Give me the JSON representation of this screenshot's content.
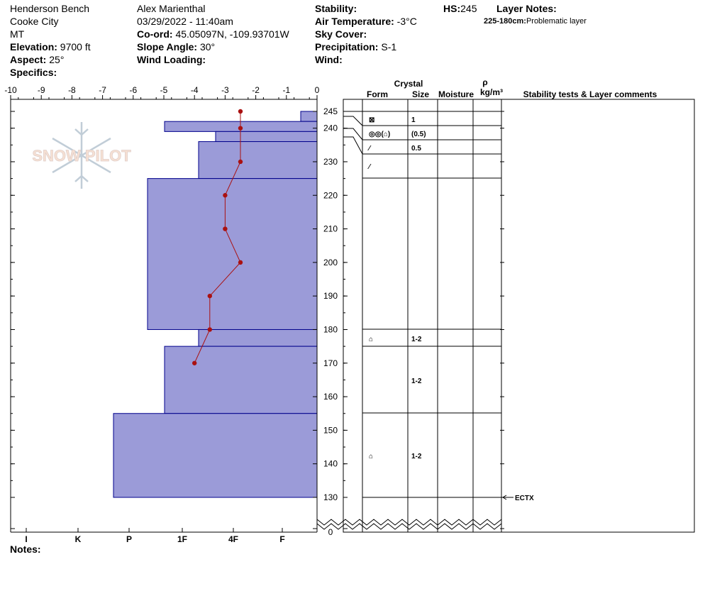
{
  "header": {
    "location": "Henderson Bench",
    "area": "Cooke City",
    "state": "MT",
    "elevation_label": "Elevation:",
    "elevation": "9700 ft",
    "aspect_label": "Aspect:",
    "aspect": "25°",
    "specifics_label": "Specifics:",
    "observer": "Alex Marienthal",
    "datetime": "03/29/2022 - 11:40am",
    "coord_label": "Co-ord:",
    "coord": "45.05097N, -109.93701W",
    "slope_label": "Slope Angle:",
    "slope": "30°",
    "wind_loading_label": "Wind Loading:",
    "stability_label": "Stability:",
    "air_temp_label": "Air Temperature:",
    "air_temp": "-3°C",
    "sky_label": "Sky Cover:",
    "precip_label": "Precipitation:",
    "precip": "S-1",
    "wind_label": "Wind:",
    "hs_label": "HS:",
    "hs": "245",
    "layer_notes_label": "Layer Notes:",
    "layer_note_range": "225-180cm:",
    "layer_note_text": "Problematic layer"
  },
  "columns": {
    "crystal": "Crystal",
    "form": "Form",
    "size": "Size",
    "moisture": "Moisture",
    "rho": "ρ",
    "density_unit": "kg/m³",
    "stability_comments": "Stability tests & Layer comments"
  },
  "notes_label": "Notes:",
  "watermark": "SNOW PILOT",
  "colors": {
    "hardness_fill": "#9b9bd8",
    "hardness_stroke": "#00008b",
    "temp": "#aa1111"
  },
  "chart_data": {
    "type": "snow-profile",
    "temp_axis": {
      "min": -10,
      "max": 0,
      "ticks": [
        "-10",
        "-9",
        "-8",
        "-7",
        "-6",
        "-5",
        "-4",
        "-3",
        "-2",
        "-1",
        "0"
      ]
    },
    "height_axis": {
      "min": 0,
      "max": 245,
      "ticks": [
        245,
        240,
        230,
        220,
        210,
        200,
        190,
        180,
        170,
        160,
        150,
        140,
        130,
        0
      ]
    },
    "hardness_labels": [
      "I",
      "K",
      "P",
      "1F",
      "4F",
      "F"
    ],
    "hardness_layers": [
      {
        "top": 245,
        "bottom": 242,
        "hardness": "F"
      },
      {
        "top": 242,
        "bottom": 239,
        "hardness": "1F+"
      },
      {
        "top": 239,
        "bottom": 236,
        "hardness": "4F+"
      },
      {
        "top": 236,
        "bottom": 225,
        "hardness": "4F"
      },
      {
        "top": 225,
        "bottom": 180,
        "hardness": "1F"
      },
      {
        "top": 180,
        "bottom": 175,
        "hardness": "4F"
      },
      {
        "top": 175,
        "bottom": 155,
        "hardness": "1F+"
      },
      {
        "top": 155,
        "bottom": 130,
        "hardness": "P-"
      }
    ],
    "temperature_profile": [
      {
        "height": 245,
        "temp": -2.5
      },
      {
        "height": 240,
        "temp": -2.5
      },
      {
        "height": 230,
        "temp": -2.5
      },
      {
        "height": 220,
        "temp": -3.0
      },
      {
        "height": 210,
        "temp": -3.0
      },
      {
        "height": 200,
        "temp": -2.5
      },
      {
        "height": 190,
        "temp": -3.5
      },
      {
        "height": 180,
        "temp": -3.5
      },
      {
        "height": 170,
        "temp": -4.0
      }
    ],
    "crystal_rows": [
      {
        "height": 243,
        "form": "⊠",
        "size": "1"
      },
      {
        "height": 239,
        "form": "◎◎(⌂)",
        "size": "(0.5)"
      },
      {
        "height": 235,
        "form": "⁄",
        "size": "0.5"
      },
      {
        "height": 229,
        "form": "⁄",
        "size": ""
      },
      {
        "height": 176,
        "form": "⌂",
        "size": "1-2"
      },
      {
        "height": 164,
        "form": "",
        "size": "1-2"
      },
      {
        "height": 141,
        "form": "⌂",
        "size": "1-2"
      }
    ],
    "stability_tests": [
      {
        "height": 130,
        "text": "ECTX"
      }
    ]
  }
}
